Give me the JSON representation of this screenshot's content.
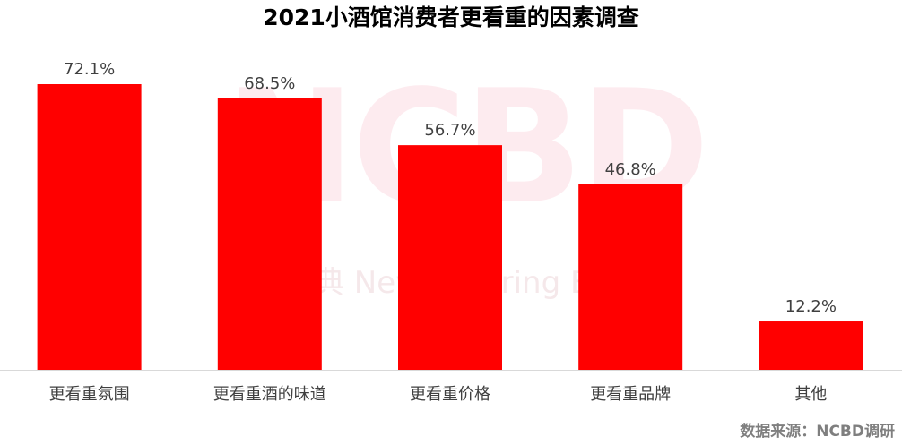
{
  "title": "2021小酒馆消费者更看重的因素调查",
  "source": "数据来源：NCBD调研",
  "watermark": {
    "main": "NCBD",
    "sub": "典  New Catering B"
  },
  "colors": {
    "bar": "#ff0000",
    "axis": "#d9d9d9",
    "label": "#404040",
    "watermark": "#fde7ec"
  },
  "chart_data": {
    "type": "bar",
    "title": "2021小酒馆消费者更看重的因素调查",
    "categories": [
      "更看重氛围",
      "更看重酒的味道",
      "更看重价格",
      "更看重品牌",
      "其他"
    ],
    "values": [
      72.1,
      68.5,
      56.7,
      46.8,
      12.2
    ],
    "value_labels": [
      "72.1%",
      "68.5%",
      "56.7%",
      "46.8%",
      "12.2%"
    ],
    "unit": "%",
    "xlabel": "",
    "ylabel": "",
    "ylim": [
      0,
      72.1
    ],
    "grid": false,
    "legend": "none"
  }
}
